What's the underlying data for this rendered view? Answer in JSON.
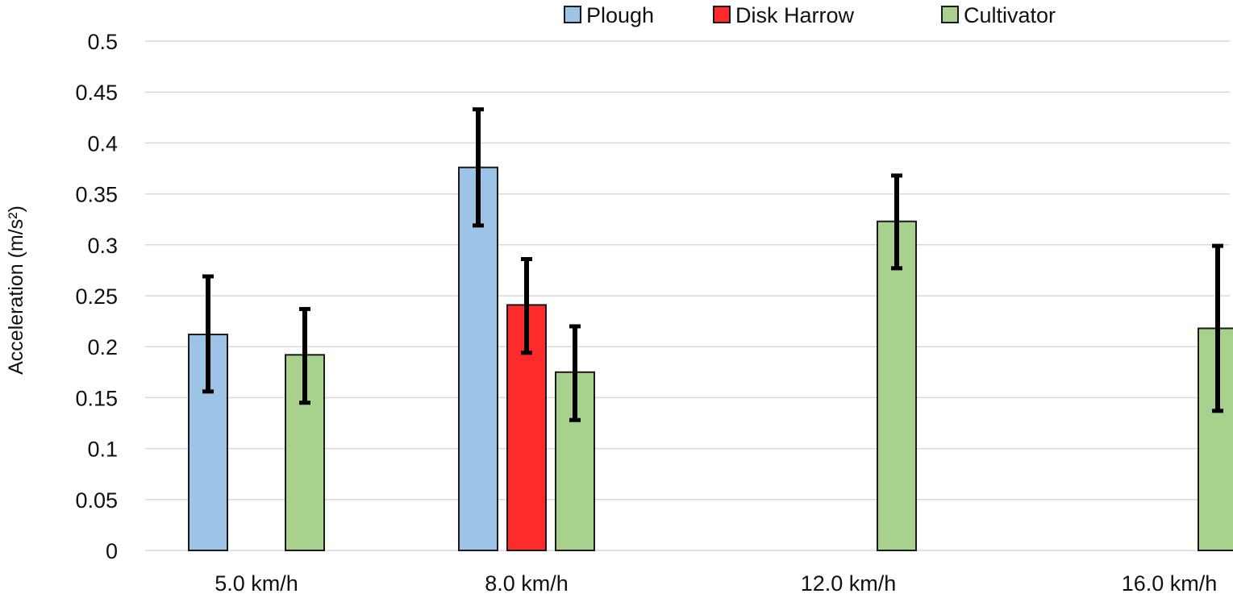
{
  "chart_data": {
    "type": "bar",
    "title": "",
    "xlabel": "",
    "ylabel": "Acceleration (m/s²)",
    "ylim": [
      0,
      0.5
    ],
    "yticks": [
      "0",
      "0.05",
      "0.1",
      "0.15",
      "0.2",
      "0.25",
      "0.3",
      "0.35",
      "0.4",
      "0.45",
      "0.5"
    ],
    "grid": true,
    "legend_position": "top",
    "categories": [
      "5.0 km/h",
      "8.0 km/h",
      "12.0 km/h",
      "16.0 km/h"
    ],
    "series": [
      {
        "name": "Plough",
        "color": "#9dc3e6",
        "values": [
          0.212,
          0.376,
          null,
          null
        ],
        "error_low": [
          0.156,
          0.319,
          null,
          null
        ],
        "error_high": [
          0.269,
          0.433,
          null,
          null
        ]
      },
      {
        "name": "Disk Harrow",
        "color": "#ff2b2b",
        "values": [
          null,
          0.241,
          null,
          null
        ],
        "error_low": [
          null,
          0.194,
          null,
          null
        ],
        "error_high": [
          null,
          0.286,
          null,
          null
        ]
      },
      {
        "name": "Cultivator",
        "color": "#a9d18e",
        "values": [
          0.192,
          0.175,
          0.323,
          0.218
        ],
        "error_low": [
          0.145,
          0.128,
          0.277,
          0.137
        ],
        "error_high": [
          0.237,
          0.22,
          0.368,
          0.299
        ]
      }
    ]
  }
}
